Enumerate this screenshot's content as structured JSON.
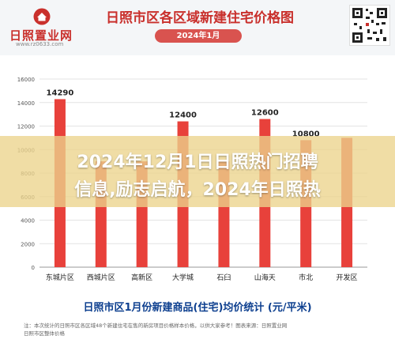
{
  "header": {
    "logo_text": "日照置业网",
    "logo_url": "www.rz0633.com",
    "title": "日照市区各区域新建住宅价格图",
    "date_badge": "2024年1月"
  },
  "banner": {
    "line1": "2024年12月1日日照热门招聘",
    "line2": "信息,励志启航，2024年日照热"
  },
  "footer": {
    "title": "日照市区1月份新建商品(住宅)均价统计 (元/平米)",
    "note": "注：本次统计的日照市区各区域48个新建住宅在售的新房项目价格样本价格，以供大家参考！图表来源：日照置业网",
    "note2": "日照市区整体价格"
  },
  "chart_data": {
    "type": "bar",
    "title": "日照市区各区域新建住宅价格图",
    "categories": [
      "东城片区",
      "西城片区",
      "高新区",
      "大学城",
      "石臼",
      "山海天",
      "市北",
      "开发区"
    ],
    "values": [
      14290,
      9000,
      9000,
      12400,
      9000,
      12600,
      10800,
      11000
    ],
    "data_labels": [
      "14290",
      "",
      "",
      "12400",
      "",
      "12600",
      "10800",
      ""
    ],
    "ylim": [
      0,
      16000
    ],
    "yticks": [
      "0",
      "2000",
      "4000",
      "6000",
      "8000",
      "10000",
      "12000",
      "14000",
      "16000"
    ],
    "grid": true,
    "bar_color": "#e8413b",
    "legend": "none"
  }
}
